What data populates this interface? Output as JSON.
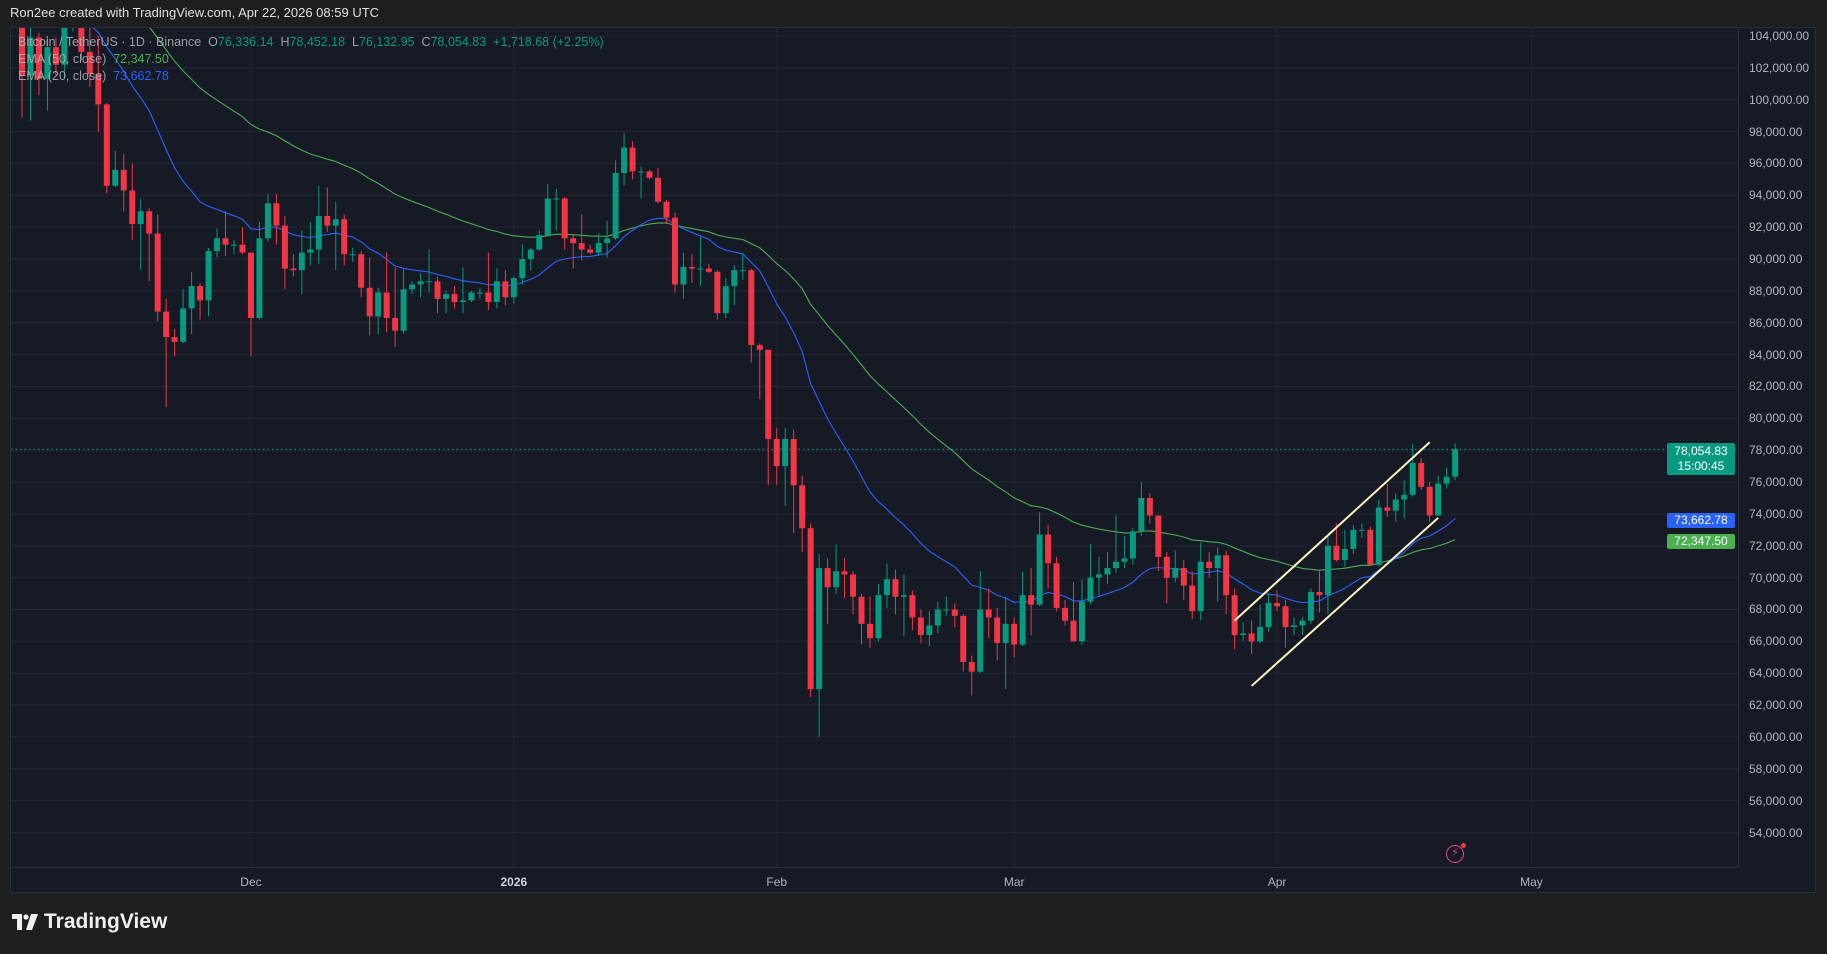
{
  "header": {
    "credit": "Ron2ee created with TradingView.com, Apr 22, 2026 08:59 UTC"
  },
  "legend": {
    "symbol": "Bitcoin / TetherUS · 1D · Binance",
    "o_label": "O",
    "o": "76,336.14",
    "h_label": "H",
    "h": "78,452.18",
    "l_label": "L",
    "l": "76,132.95",
    "c_label": "C",
    "c": "78,054.83",
    "change": "+1,718.68 (+2.25%)",
    "ema50_label": "EMA (50, close)",
    "ema50_value": "72,347.50",
    "ema20_label": "EMA (20, close)",
    "ema20_value": "73,662.78"
  },
  "badges": {
    "price": "78,054.83",
    "countdown": "15:00:45",
    "ema20": "73,662.78",
    "ema50": "72,347.50"
  },
  "footer": {
    "brand": "TradingView"
  },
  "colors": {
    "up": "#089981",
    "down": "#f23645",
    "ema50": "#4caf50",
    "ema20": "#2962ff",
    "channel": "#fff3c4",
    "background": "#161a25"
  },
  "chart_data": {
    "type": "candlestick",
    "title": "Bitcoin / TetherUS · 1D · Binance",
    "ylim": [
      53000,
      104500
    ],
    "grid": true,
    "y_ticks": [
      104000,
      102000,
      100000,
      98000,
      96000,
      94000,
      92000,
      90000,
      88000,
      86000,
      84000,
      82000,
      80000,
      78000,
      76000,
      74000,
      72000,
      70000,
      68000,
      66000,
      64000,
      62000,
      60000,
      58000,
      56000,
      54000
    ],
    "y_tick_labels": [
      "104,000.00",
      "102,000.00",
      "100,000.00",
      "98,000.00",
      "96,000.00",
      "94,000.00",
      "92,000.00",
      "90,000.00",
      "88,000.00",
      "86,000.00",
      "84,000.00",
      "82,000.00",
      "80,000.00",
      "78,000.00",
      "76,000.00",
      "74,000.00",
      "72,000.00",
      "70,000.00",
      "68,000.00",
      "66,000.00",
      "64,000.00",
      "62,000.00",
      "60,000.00",
      "58,000.00",
      "56,000.00",
      "54,000.00"
    ],
    "x_ticks": [
      {
        "date": "2025-12-01",
        "label": "Dec",
        "year": false
      },
      {
        "date": "2026-01-01",
        "label": "2026",
        "year": true
      },
      {
        "date": "2026-02-01",
        "label": "Feb",
        "year": false
      },
      {
        "date": "2026-03-01",
        "label": "Mar",
        "year": false
      },
      {
        "date": "2026-04-01",
        "label": "Apr",
        "year": false
      },
      {
        "date": "2026-05-01",
        "label": "May",
        "year": false
      }
    ],
    "last_price": 78054.83,
    "indicators": [
      {
        "name": "EMA (50, close)",
        "period": 50,
        "last": 72347.5
      },
      {
        "name": "EMA (20, close)",
        "period": 20,
        "last": 73662.78
      }
    ],
    "channel": {
      "upper": [
        [
          "2026-03-27",
          67300
        ],
        [
          "2026-04-19",
          78500
        ]
      ],
      "lower": [
        [
          "2026-03-29",
          63200
        ],
        [
          "2026-04-20",
          73750
        ]
      ]
    },
    "candles_columns": [
      "date",
      "open",
      "high",
      "low",
      "close"
    ],
    "candles": [
      [
        "2025-11-04",
        106500,
        106600,
        98900,
        101500
      ],
      [
        "2025-11-05",
        101500,
        104500,
        98700,
        103900
      ],
      [
        "2025-11-06",
        103900,
        104200,
        100300,
        101300
      ],
      [
        "2025-11-07",
        101300,
        104000,
        99300,
        103300
      ],
      [
        "2025-11-08",
        103300,
        103900,
        101500,
        102200
      ],
      [
        "2025-11-09",
        102200,
        105000,
        101300,
        104700
      ],
      [
        "2025-11-10",
        104700,
        106600,
        104300,
        105900
      ],
      [
        "2025-11-11",
        105900,
        107000,
        102500,
        103000
      ],
      [
        "2025-11-12",
        103000,
        105300,
        100800,
        101600
      ],
      [
        "2025-11-13",
        101600,
        104000,
        98000,
        99700
      ],
      [
        "2025-11-14",
        99700,
        99800,
        94100,
        94600
      ],
      [
        "2025-11-15",
        94600,
        96800,
        94500,
        95600
      ],
      [
        "2025-11-16",
        95600,
        96600,
        93000,
        94300
      ],
      [
        "2025-11-17",
        94300,
        96000,
        91200,
        92200
      ],
      [
        "2025-11-18",
        92200,
        93800,
        89300,
        93000
      ],
      [
        "2025-11-19",
        93000,
        93200,
        88600,
        91600
      ],
      [
        "2025-11-20",
        91600,
        92800,
        86100,
        86700
      ],
      [
        "2025-11-21",
        86700,
        87500,
        80700,
        85100
      ],
      [
        "2025-11-22",
        85100,
        85600,
        83900,
        84800
      ],
      [
        "2025-11-23",
        84800,
        88100,
        84700,
        86900
      ],
      [
        "2025-11-24",
        86900,
        89200,
        85300,
        88300
      ],
      [
        "2025-11-25",
        88300,
        88500,
        86200,
        87400
      ],
      [
        "2025-11-26",
        87400,
        90700,
        86400,
        90500
      ],
      [
        "2025-11-27",
        90500,
        91900,
        90100,
        91300
      ],
      [
        "2025-11-28",
        91300,
        93000,
        90200,
        90900
      ],
      [
        "2025-11-29",
        90900,
        91200,
        90300,
        90900
      ],
      [
        "2025-11-30",
        90900,
        92000,
        90300,
        90400
      ],
      [
        "2025-12-01",
        90400,
        90400,
        83900,
        86300
      ],
      [
        "2025-12-02",
        86300,
        92300,
        86200,
        91300
      ],
      [
        "2025-12-03",
        91300,
        94100,
        91100,
        93500
      ],
      [
        "2025-12-04",
        93500,
        94100,
        90900,
        92100
      ],
      [
        "2025-12-05",
        92100,
        92700,
        88100,
        89400
      ],
      [
        "2025-12-06",
        89400,
        90300,
        88900,
        89300
      ],
      [
        "2025-12-07",
        89300,
        91800,
        87800,
        90400
      ],
      [
        "2025-12-08",
        90400,
        92300,
        89600,
        90600
      ],
      [
        "2025-12-09",
        90600,
        94600,
        89700,
        92700
      ],
      [
        "2025-12-10",
        92700,
        94500,
        91700,
        92100
      ],
      [
        "2025-12-11",
        92100,
        93600,
        89300,
        92500
      ],
      [
        "2025-12-12",
        92500,
        92800,
        89600,
        90300
      ],
      [
        "2025-12-13",
        90300,
        90700,
        89800,
        90300
      ],
      [
        "2025-12-14",
        90300,
        90500,
        87600,
        88200
      ],
      [
        "2025-12-15",
        88200,
        90100,
        85200,
        86400
      ],
      [
        "2025-12-16",
        86400,
        88200,
        85300,
        87900
      ],
      [
        "2025-12-17",
        87900,
        90400,
        85400,
        86300
      ],
      [
        "2025-12-18",
        86300,
        89500,
        84500,
        85500
      ],
      [
        "2025-12-19",
        85500,
        89400,
        85300,
        88100
      ],
      [
        "2025-12-20",
        88100,
        88600,
        87800,
        88400
      ],
      [
        "2025-12-21",
        88400,
        89100,
        87600,
        88600
      ],
      [
        "2025-12-22",
        88600,
        90600,
        87900,
        88600
      ],
      [
        "2025-12-23",
        88600,
        88900,
        86600,
        87500
      ],
      [
        "2025-12-24",
        87500,
        88000,
        86600,
        87800
      ],
      [
        "2025-12-25",
        87800,
        88300,
        86900,
        87300
      ],
      [
        "2025-12-26",
        87300,
        89500,
        86600,
        87400
      ],
      [
        "2025-12-27",
        87400,
        88000,
        87300,
        87900
      ],
      [
        "2025-12-28",
        87900,
        88200,
        87500,
        87900
      ],
      [
        "2025-12-29",
        87900,
        90400,
        86800,
        87300
      ],
      [
        "2025-12-30",
        87300,
        89400,
        86900,
        88600
      ],
      [
        "2025-12-31",
        88600,
        89300,
        87100,
        87600
      ],
      [
        "2026-01-01",
        87600,
        88900,
        87200,
        88800
      ],
      [
        "2026-01-02",
        88800,
        90900,
        88400,
        90000
      ],
      [
        "2026-01-03",
        90000,
        90700,
        89300,
        90600
      ],
      [
        "2026-01-04",
        90600,
        91800,
        90500,
        91500
      ],
      [
        "2026-01-05",
        91500,
        94700,
        91400,
        93800
      ],
      [
        "2026-01-06",
        93800,
        94400,
        91800,
        93800
      ],
      [
        "2026-01-07",
        93800,
        93900,
        90600,
        91300
      ],
      [
        "2026-01-08",
        91300,
        91500,
        89400,
        91000
      ],
      [
        "2026-01-09",
        91000,
        92800,
        89900,
        90600
      ],
      [
        "2026-01-10",
        90600,
        90900,
        90300,
        90400
      ],
      [
        "2026-01-11",
        90400,
        91600,
        90200,
        91000
      ],
      [
        "2026-01-12",
        91000,
        92400,
        90100,
        91300
      ],
      [
        "2026-01-13",
        91300,
        96200,
        91200,
        95400
      ],
      [
        "2026-01-14",
        95400,
        97900,
        94600,
        97000
      ],
      [
        "2026-01-15",
        97000,
        97400,
        95000,
        95500
      ],
      [
        "2026-01-16",
        95500,
        95800,
        93800,
        95500
      ],
      [
        "2026-01-17",
        95500,
        95600,
        95000,
        95100
      ],
      [
        "2026-01-18",
        95100,
        95700,
        93500,
        93600
      ],
      [
        "2026-01-19",
        93600,
        93700,
        92200,
        92600
      ],
      [
        "2026-01-20",
        92600,
        92900,
        87900,
        88400
      ],
      [
        "2026-01-21",
        88400,
        90400,
        87500,
        89500
      ],
      [
        "2026-01-22",
        89500,
        90300,
        88500,
        89400
      ],
      [
        "2026-01-23",
        89400,
        91400,
        88300,
        89400
      ],
      [
        "2026-01-24",
        89400,
        89700,
        89100,
        89200
      ],
      [
        "2026-01-25",
        89200,
        89300,
        86200,
        86600
      ],
      [
        "2026-01-26",
        86600,
        88800,
        86300,
        88300
      ],
      [
        "2026-01-27",
        88300,
        89600,
        87100,
        89300
      ],
      [
        "2026-01-28",
        89300,
        90400,
        88700,
        89300
      ],
      [
        "2026-01-29",
        89300,
        89400,
        83500,
        84600
      ],
      [
        "2026-01-30",
        84600,
        84700,
        81200,
        84300
      ],
      [
        "2026-01-31",
        84300,
        84300,
        75800,
        78700
      ],
      [
        "2026-02-01",
        78700,
        79400,
        75800,
        77000
      ],
      [
        "2026-02-02",
        77000,
        79400,
        74500,
        78700
      ],
      [
        "2026-02-03",
        78700,
        79300,
        72800,
        75800
      ],
      [
        "2026-02-04",
        75800,
        76400,
        71600,
        73100
      ],
      [
        "2026-02-05",
        73100,
        73400,
        62500,
        63000
      ],
      [
        "2026-02-06",
        63000,
        71500,
        60000,
        70600
      ],
      [
        "2026-02-07",
        70600,
        71200,
        67100,
        69400
      ],
      [
        "2026-02-08",
        69400,
        72100,
        69000,
        70400
      ],
      [
        "2026-02-09",
        70400,
        71200,
        68700,
        70200
      ],
      [
        "2026-02-10",
        70200,
        70400,
        67700,
        68800
      ],
      [
        "2026-02-11",
        68800,
        69000,
        65800,
        67100
      ],
      [
        "2026-02-12",
        67100,
        68800,
        65600,
        66200
      ],
      [
        "2026-02-13",
        66200,
        69600,
        66000,
        68900
      ],
      [
        "2026-02-14",
        68900,
        70900,
        68100,
        69900
      ],
      [
        "2026-02-15",
        69900,
        70500,
        67700,
        68800
      ],
      [
        "2026-02-16",
        68800,
        70200,
        66300,
        68900
      ],
      [
        "2026-02-17",
        68900,
        69200,
        66700,
        67500
      ],
      [
        "2026-02-18",
        67500,
        68000,
        65900,
        66400
      ],
      [
        "2026-02-19",
        66400,
        67900,
        65700,
        67000
      ],
      [
        "2026-02-20",
        67000,
        68500,
        66500,
        68000
      ],
      [
        "2026-02-21",
        68000,
        68800,
        67600,
        68000
      ],
      [
        "2026-02-22",
        68000,
        68400,
        66900,
        67600
      ],
      [
        "2026-02-23",
        67600,
        67700,
        64100,
        64700
      ],
      [
        "2026-02-24",
        64700,
        65100,
        62600,
        64100
      ],
      [
        "2026-02-25",
        64100,
        70400,
        64000,
        68000
      ],
      [
        "2026-02-26",
        68000,
        69300,
        66200,
        67500
      ],
      [
        "2026-02-27",
        67500,
        68100,
        64800,
        65900
      ],
      [
        "2026-02-28",
        65900,
        68800,
        63000,
        67100
      ],
      [
        "2026-03-01",
        67100,
        67500,
        65000,
        65800
      ],
      [
        "2026-03-02",
        65800,
        70400,
        65700,
        68900
      ],
      [
        "2026-03-03",
        68900,
        70600,
        66400,
        68300
      ],
      [
        "2026-03-04",
        68300,
        74100,
        68200,
        72700
      ],
      [
        "2026-03-05",
        72700,
        73300,
        69300,
        70900
      ],
      [
        "2026-03-06",
        70900,
        71300,
        67900,
        68100
      ],
      [
        "2026-03-07",
        68100,
        68600,
        67000,
        67300
      ],
      [
        "2026-03-08",
        67300,
        69700,
        66000,
        66000
      ],
      [
        "2026-03-09",
        66000,
        69900,
        65800,
        68500
      ],
      [
        "2026-03-10",
        68500,
        72100,
        68300,
        70000
      ],
      [
        "2026-03-11",
        70000,
        71300,
        68900,
        70200
      ],
      [
        "2026-03-12",
        70200,
        71600,
        69600,
        70600
      ],
      [
        "2026-03-13",
        70600,
        73900,
        70300,
        71000
      ],
      [
        "2026-03-14",
        71000,
        72600,
        70600,
        71200
      ],
      [
        "2026-03-15",
        71200,
        73100,
        70800,
        72900
      ],
      [
        "2026-03-16",
        72900,
        76000,
        72600,
        75000
      ],
      [
        "2026-03-17",
        75000,
        75300,
        73400,
        73900
      ],
      [
        "2026-03-18",
        73900,
        73900,
        70400,
        71300
      ],
      [
        "2026-03-19",
        71300,
        71600,
        68400,
        70000
      ],
      [
        "2026-03-20",
        70000,
        71700,
        69700,
        70600
      ],
      [
        "2026-03-21",
        70600,
        71100,
        68600,
        69500
      ],
      [
        "2026-03-22",
        69500,
        70400,
        67400,
        67900
      ],
      [
        "2026-03-23",
        67900,
        72200,
        67300,
        71000
      ],
      [
        "2026-03-24",
        71000,
        71600,
        70000,
        70600
      ],
      [
        "2026-03-25",
        70600,
        71900,
        68500,
        71400
      ],
      [
        "2026-03-26",
        71400,
        71700,
        67700,
        68900
      ],
      [
        "2026-03-27",
        68900,
        69300,
        65500,
        66400
      ],
      [
        "2026-03-28",
        66400,
        67200,
        66000,
        66500
      ],
      [
        "2026-03-29",
        66500,
        67300,
        65200,
        66000
      ],
      [
        "2026-03-30",
        66000,
        68300,
        65900,
        66900
      ],
      [
        "2026-03-31",
        66900,
        69000,
        66600,
        68400
      ],
      [
        "2026-04-01",
        68400,
        69200,
        67900,
        68200
      ],
      [
        "2026-04-02",
        68200,
        68600,
        65600,
        66900
      ],
      [
        "2026-04-03",
        66900,
        67500,
        66400,
        67000
      ],
      [
        "2026-04-04",
        67000,
        67500,
        66400,
        67300
      ],
      [
        "2026-04-05",
        67300,
        69300,
        67100,
        69100
      ],
      [
        "2026-04-06",
        69100,
        70500,
        67800,
        68900
      ],
      [
        "2026-04-07",
        68900,
        72700,
        67700,
        72000
      ],
      [
        "2026-04-08",
        72000,
        73400,
        71000,
        71100
      ],
      [
        "2026-04-09",
        71100,
        73000,
        70700,
        71800
      ],
      [
        "2026-04-10",
        71800,
        73300,
        71500,
        73000
      ],
      [
        "2026-04-11",
        73000,
        73400,
        72500,
        73000
      ],
      [
        "2026-04-12",
        73000,
        73200,
        70800,
        70800
      ],
      [
        "2026-04-13",
        70800,
        74900,
        70700,
        74400
      ],
      [
        "2026-04-14",
        74400,
        75900,
        73800,
        74200
      ],
      [
        "2026-04-15",
        74200,
        75300,
        73500,
        74900
      ],
      [
        "2026-04-16",
        74900,
        76100,
        73700,
        75200
      ],
      [
        "2026-04-17",
        75200,
        78400,
        75100,
        77200
      ],
      [
        "2026-04-18",
        77200,
        77500,
        75500,
        75700
      ],
      [
        "2026-04-19",
        75700,
        76000,
        73500,
        73900
      ],
      [
        "2026-04-20",
        73900,
        76400,
        73900,
        75900
      ],
      [
        "2026-04-21",
        75900,
        76900,
        75600,
        76336.14
      ],
      [
        "2026-04-22",
        76336.14,
        78452.18,
        76132.95,
        78054.83
      ]
    ]
  }
}
